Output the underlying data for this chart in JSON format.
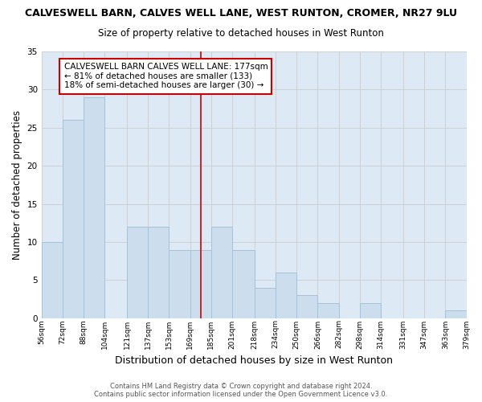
{
  "title": "CALVESWELL BARN, CALVES WELL LANE, WEST RUNTON, CROMER, NR27 9LU",
  "subtitle": "Size of property relative to detached houses in West Runton",
  "xlabel": "Distribution of detached houses by size in West Runton",
  "ylabel": "Number of detached properties",
  "footer_line1": "Contains HM Land Registry data © Crown copyright and database right 2024.",
  "footer_line2": "Contains public sector information licensed under the Open Government Licence v3.0.",
  "bin_edges": [
    56,
    72,
    88,
    104,
    121,
    137,
    153,
    169,
    185,
    201,
    218,
    234,
    250,
    266,
    282,
    298,
    314,
    331,
    347,
    363,
    379
  ],
  "bin_labels": [
    "56sqm",
    "72sqm",
    "88sqm",
    "104sqm",
    "121sqm",
    "137sqm",
    "153sqm",
    "169sqm",
    "185sqm",
    "201sqm",
    "218sqm",
    "234sqm",
    "250sqm",
    "266sqm",
    "282sqm",
    "298sqm",
    "314sqm",
    "331sqm",
    "347sqm",
    "363sqm",
    "379sqm"
  ],
  "counts": [
    10,
    26,
    29,
    0,
    12,
    12,
    9,
    9,
    12,
    9,
    4,
    6,
    3,
    2,
    0,
    2,
    0,
    0,
    0,
    1
  ],
  "bar_color": "#ccdeed",
  "bar_edge_color": "#a0c4da",
  "property_size": 177,
  "vline_color": "#cc0000",
  "annotation_text": "CALVESWELL BARN CALVES WELL LANE: 177sqm\n← 81% of detached houses are smaller (133)\n18% of semi-detached houses are larger (30) →",
  "annotation_box_edge": "#cc0000",
  "annotation_box_fill": "#ffffff",
  "ylim": [
    0,
    35
  ],
  "yticks": [
    0,
    5,
    10,
    15,
    20,
    25,
    30,
    35
  ],
  "grid_color": "#cccccc",
  "bg_color": "#ddeaf5",
  "title_fontsize": 9,
  "subtitle_fontsize": 8.5,
  "xlabel_fontsize": 9,
  "ylabel_fontsize": 8.5,
  "annotation_fontsize": 7.5
}
